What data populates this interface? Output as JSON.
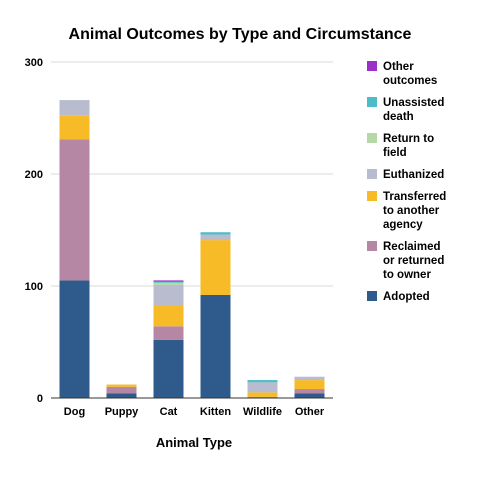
{
  "chart_data": {
    "type": "bar",
    "stacked": true,
    "title": "Animal Outcomes by Type and Circumstance",
    "xlabel": "Animal Type",
    "ylabel": "",
    "ylim": [
      0,
      300
    ],
    "yticks": [
      0,
      100,
      200,
      300
    ],
    "grid": true,
    "legend_position": "right",
    "categories": [
      "Dog",
      "Puppy",
      "Cat",
      "Kitten",
      "Wildlife",
      "Other"
    ],
    "series": [
      {
        "name": "Adopted",
        "color": "#2e5b8c",
        "values": [
          105,
          4,
          52,
          92,
          0,
          4
        ]
      },
      {
        "name": "Reclaimed or returned to owner",
        "color": "#b587a4",
        "values": [
          126,
          6,
          12,
          0,
          1,
          4
        ]
      },
      {
        "name": "Transferred to another agency",
        "color": "#f6bb27",
        "values": [
          21,
          2,
          19,
          49,
          4,
          8
        ]
      },
      {
        "name": "Euthanized",
        "color": "#b9bccf",
        "values": [
          14,
          0,
          18,
          5,
          9,
          3
        ]
      },
      {
        "name": "Return to field",
        "color": "#b5d8a6",
        "values": [
          0,
          0,
          2,
          0,
          0,
          0
        ]
      },
      {
        "name": "Unassisted death",
        "color": "#4cbcc8",
        "values": [
          0,
          0,
          1,
          2,
          2,
          0
        ]
      },
      {
        "name": "Other outcomes",
        "color": "#9b30c9",
        "values": [
          0,
          0,
          1,
          0,
          0,
          0
        ]
      }
    ]
  }
}
